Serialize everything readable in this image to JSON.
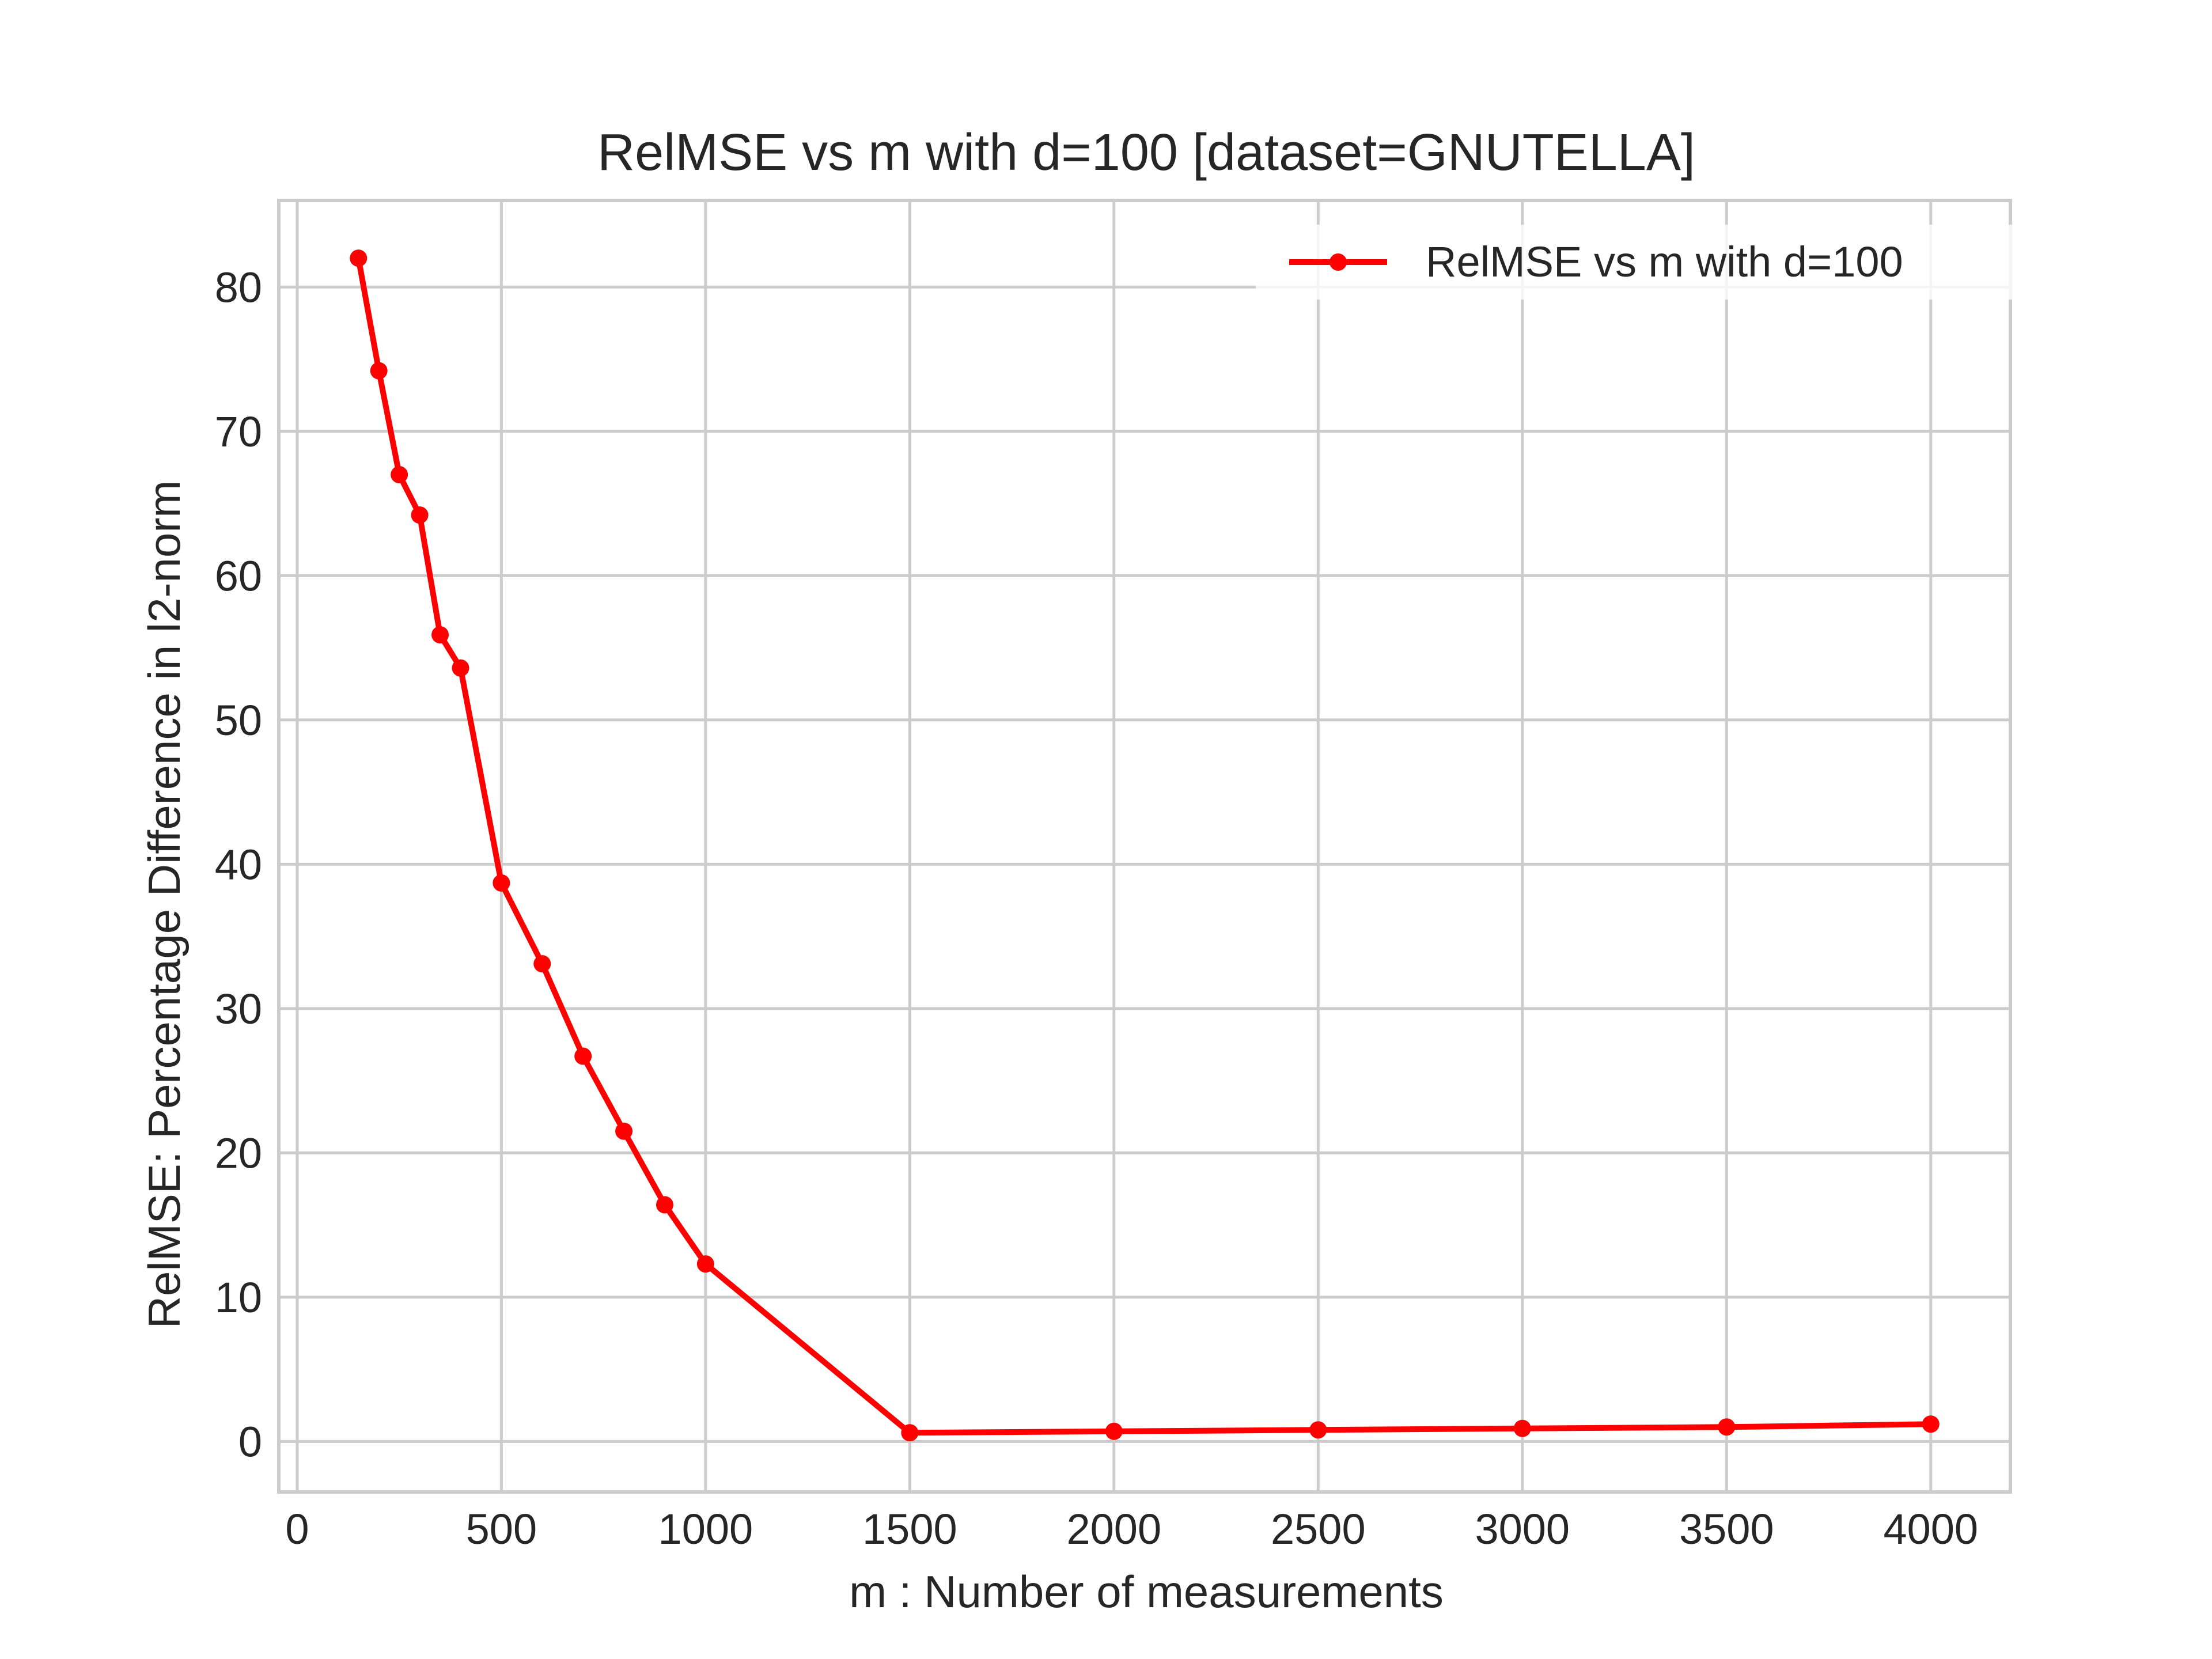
{
  "chart_data": {
    "type": "line",
    "title": "RelMSE vs m with d=100 [dataset=GNUTELLA]",
    "xlabel": "m : Number of measurements",
    "ylabel": "RelMSE: Percentage Difference in l2-norm",
    "xlim": [
      -45,
      4195
    ],
    "ylim": [
      -3.5,
      86
    ],
    "xticks": [
      0,
      500,
      1000,
      1500,
      2000,
      2500,
      3000,
      3500,
      4000
    ],
    "xtick_labels": [
      "0",
      "500",
      "1000",
      "1500",
      "2000",
      "2500",
      "3000",
      "3500",
      "4000"
    ],
    "yticks": [
      0,
      10,
      20,
      30,
      40,
      50,
      60,
      70,
      80
    ],
    "ytick_labels": [
      "0",
      "10",
      "20",
      "30",
      "40",
      "50",
      "60",
      "70",
      "80"
    ],
    "grid": true,
    "legend_position": "top-right",
    "series": [
      {
        "name": "RelMSE vs m with d=100",
        "color": "#ff0000",
        "marker": "circle",
        "x": [
          150,
          200,
          250,
          300,
          350,
          400,
          500,
          600,
          700,
          800,
          900,
          1000,
          1500,
          2000,
          2500,
          3000,
          3500,
          4000
        ],
        "y": [
          82.0,
          74.2,
          67.0,
          64.2,
          55.9,
          53.6,
          38.7,
          33.1,
          26.7,
          21.5,
          16.4,
          12.3,
          0.6,
          0.7,
          0.8,
          0.9,
          1.0,
          1.2
        ]
      }
    ]
  }
}
